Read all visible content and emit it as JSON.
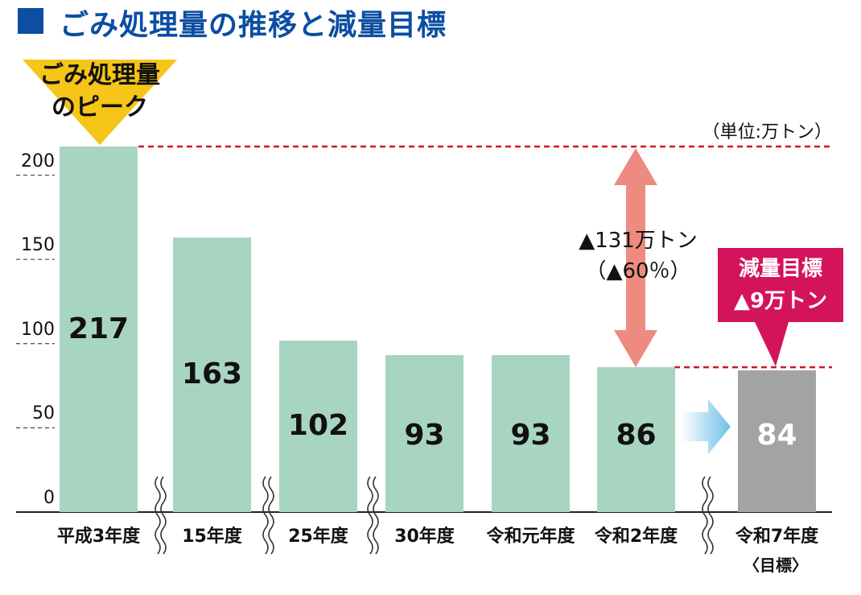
{
  "title": "ごみ処理量の推移と減量目標",
  "peak_label_line1": "ごみ処理量",
  "peak_label_line2": "のピーク",
  "unit": "（単位:万トン）",
  "difference_label_line1": "▲131万トン",
  "difference_label_line2": "（▲60％）",
  "target_box_line1": "減量目標",
  "target_box_line2": "▲9万トン",
  "target_sub_label": "〈目標〉",
  "colors": {
    "title": "#0b4ea2",
    "bar_actual": "#a8d5c1",
    "bar_target": "#a3a3a3",
    "peak_marker": "#f5c518",
    "dashed_line": "#d0142c",
    "diff_arrow": "#ee8b80",
    "target_box": "#d4145a",
    "trend_arrow": "#6fbfe8"
  },
  "chart_data": {
    "type": "bar",
    "categories": [
      "平成3年度",
      "15年度",
      "25年度",
      "30年度",
      "令和元年度",
      "令和2年度",
      "令和7年度"
    ],
    "values": [
      217,
      163,
      102,
      93,
      93,
      86,
      84
    ],
    "value_labels": [
      "217",
      "163",
      "102",
      "93",
      "93",
      "86",
      "84"
    ],
    "target_index": 6,
    "axis_breaks_after": [
      0,
      1,
      2,
      5
    ],
    "yticks": [
      0,
      50,
      100,
      150,
      200
    ],
    "ytick_labels": [
      "0",
      "50",
      "100",
      "150",
      "200"
    ],
    "ylim": [
      0,
      217
    ],
    "grid": false,
    "reference_lines": [
      217,
      86
    ]
  }
}
